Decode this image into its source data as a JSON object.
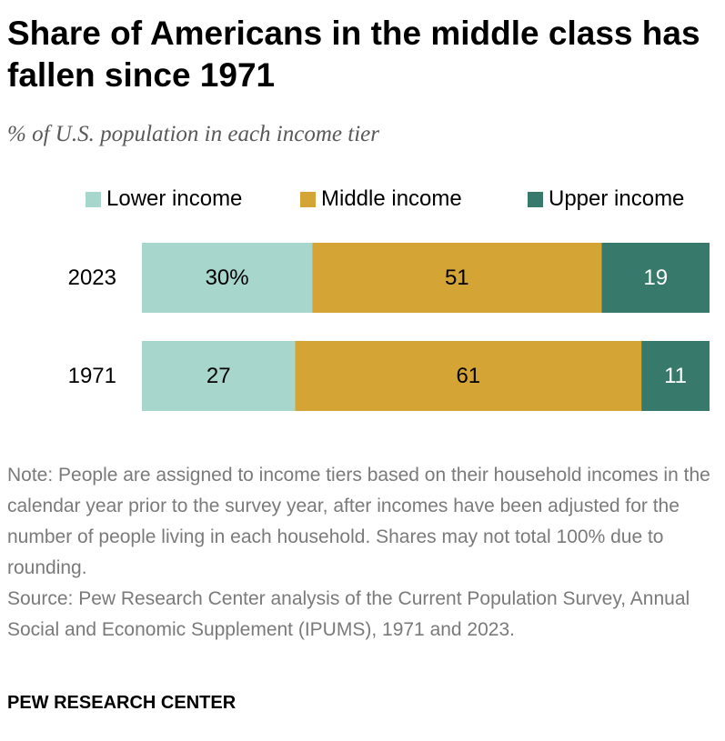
{
  "header": {
    "title": "Share of Americans in the middle class has fallen since 1971",
    "subtitle": "% of U.S. population in each income tier"
  },
  "colors": {
    "lower": "#a6d6cc",
    "middle": "#d4a534",
    "upper": "#37796a",
    "label_dark": "#000000",
    "label_light": "#ffffff"
  },
  "chart_data": {
    "type": "bar",
    "orientation": "horizontal",
    "stacked": true,
    "categories": [
      "2023",
      "1971"
    ],
    "series": [
      {
        "name": "Lower income",
        "values": [
          30,
          27
        ],
        "labels": [
          "30%",
          "27"
        ]
      },
      {
        "name": "Middle income",
        "values": [
          51,
          61
        ],
        "labels": [
          "51",
          "61"
        ]
      },
      {
        "name": "Upper income",
        "values": [
          19,
          11
        ],
        "labels": [
          "19",
          "11"
        ]
      }
    ],
    "title": "Share of Americans in the middle class has fallen since 1971",
    "subtitle": "% of U.S. population in each income tier",
    "xlabel": "",
    "ylabel": "",
    "xlim": [
      0,
      100
    ],
    "legend": "top",
    "grid": false
  },
  "note": {
    "text": "Note: People are assigned to income tiers based on their household incomes in the calendar year prior to the survey year, after incomes have been adjusted for the number of people living in each household. Shares may not total 100% due to rounding.",
    "source": "Source: Pew Research Center analysis of the Current Population Survey, Annual Social and Economic Supplement (IPUMS), 1971 and 2023."
  },
  "footer": {
    "brand": "PEW RESEARCH CENTER"
  }
}
